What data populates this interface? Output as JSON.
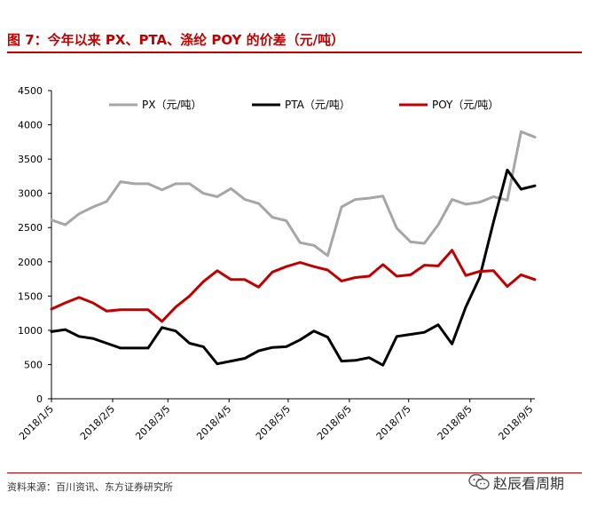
{
  "header": {
    "title": "图 7：今年以来 PX、PTA、涤纶 POY 的价差（元/吨）"
  },
  "footer": {
    "source": "资料来源：百川资讯、东方证券研究所",
    "watermark": "赵辰看周期"
  },
  "colors": {
    "title": "#c00000",
    "px": "#a6a6a6",
    "pta": "#000000",
    "poy": "#c00000"
  },
  "chart_data": {
    "type": "line",
    "title": "",
    "xlabel": "",
    "ylabel": "",
    "ylim": [
      0,
      4500
    ],
    "yticks": [
      0,
      500,
      1000,
      1500,
      2000,
      2500,
      3000,
      3500,
      4000,
      4500
    ],
    "xtick_labels": [
      "2018/1/5",
      "2018/2/5",
      "2018/3/5",
      "2018/4/5",
      "2018/5/5",
      "2018/6/5",
      "2018/7/5",
      "2018/8/5",
      "2018/9/5"
    ],
    "xtick_positions": [
      0,
      4.43,
      8.43,
      12.86,
      17.14,
      21.57,
      25.86,
      30.29,
      34.71
    ],
    "x_range": [
      0,
      35
    ],
    "grid": false,
    "legend_position": "top",
    "series": [
      {
        "name": "PX（元/吨）",
        "color": "#a6a6a6",
        "values": [
          2610,
          2540,
          2700,
          2800,
          2880,
          3170,
          3140,
          3140,
          3050,
          3140,
          3140,
          3000,
          2950,
          3070,
          2910,
          2850,
          2650,
          2600,
          2280,
          2240,
          2090,
          2800,
          2910,
          2930,
          2960,
          2490,
          2290,
          2270,
          2540,
          2910,
          2840,
          2870,
          2950,
          2900,
          3900,
          3820
        ]
      },
      {
        "name": "PTA（元/吨）",
        "color": "#000000",
        "values": [
          980,
          1010,
          910,
          880,
          810,
          740,
          740,
          740,
          1040,
          990,
          810,
          760,
          510,
          550,
          590,
          700,
          750,
          760,
          860,
          990,
          900,
          550,
          560,
          600,
          490,
          910,
          940,
          970,
          1080,
          800,
          1340,
          1770,
          2580,
          3340,
          3060,
          3110
        ]
      },
      {
        "name": "POY（元/吨）",
        "color": "#c00000",
        "values": [
          1310,
          1400,
          1480,
          1400,
          1280,
          1300,
          1300,
          1300,
          1130,
          1340,
          1500,
          1710,
          1870,
          1740,
          1740,
          1630,
          1850,
          1930,
          1990,
          1930,
          1880,
          1720,
          1770,
          1790,
          1960,
          1790,
          1810,
          1950,
          1940,
          2170,
          1800,
          1860,
          1870,
          1640,
          1810,
          1740
        ]
      }
    ]
  }
}
